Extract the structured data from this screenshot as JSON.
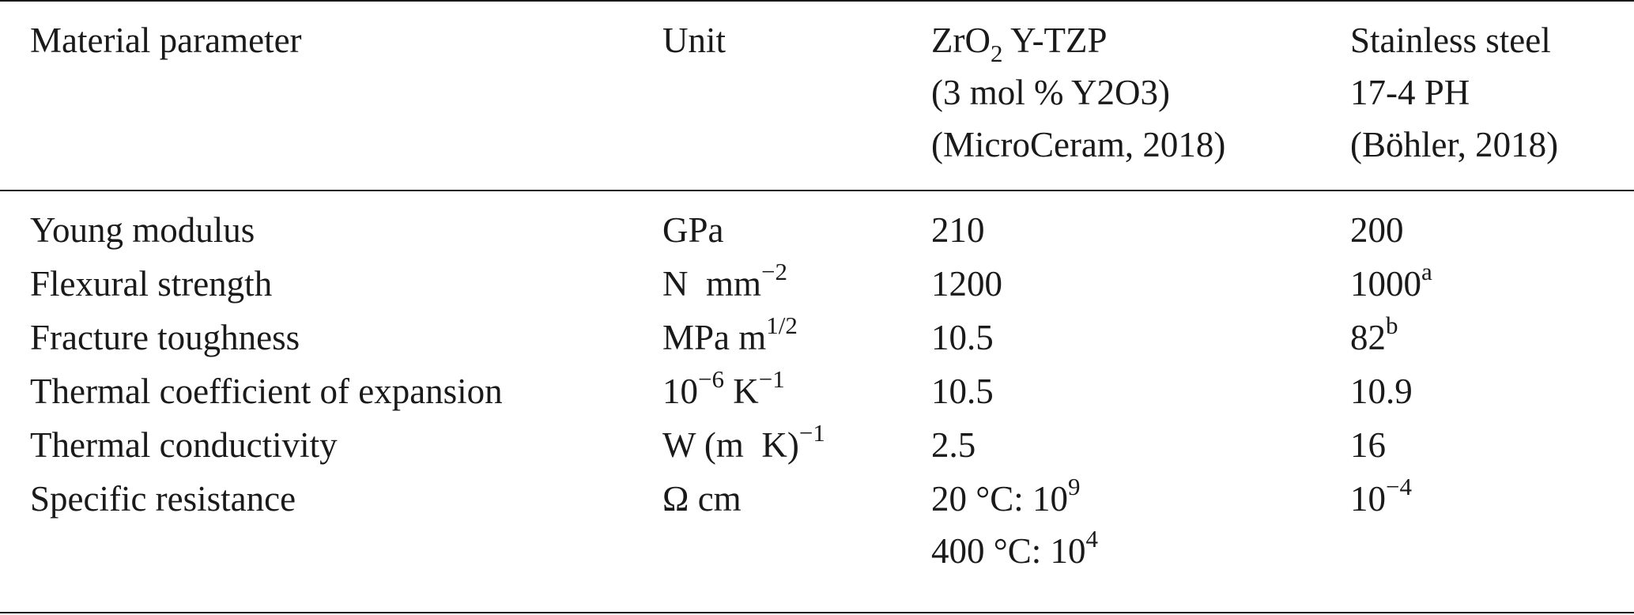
{
  "table": {
    "header": {
      "material_parameter": "Material parameter",
      "unit": "Unit",
      "zro2": {
        "line1_pre": "ZrO",
        "line1_sub": "2",
        "line1_post": " Y-TZP",
        "line2": "(3 mol % Y2O3)",
        "line3": "(MicroCeram, 2018)"
      },
      "steel": {
        "line1": "Stainless steel",
        "line2": "17-4 PH",
        "line3": "(Böhler, 2018)"
      }
    },
    "rows": [
      {
        "param": "Young modulus",
        "unit_base": "GPa",
        "unit_sup": "",
        "unit_post": "",
        "zro2": "210",
        "zro2_sup": "",
        "steel": "200",
        "steel_sup": ""
      },
      {
        "param": "Flexural strength",
        "unit_base": "N  mm",
        "unit_sup": "−2",
        "unit_post": "",
        "zro2": "1200",
        "zro2_sup": "",
        "steel": "1000",
        "steel_sup": "a"
      },
      {
        "param": "Fracture toughness",
        "unit_base": "MPa m",
        "unit_sup": "1/2",
        "unit_post": "",
        "zro2": "10.5",
        "zro2_sup": "",
        "steel": "82",
        "steel_sup": "b"
      },
      {
        "param": "Thermal coefficient of expansion",
        "unit_base": "10",
        "unit_sup": "−6",
        "unit_post": " K",
        "unit_sup2": "−1",
        "zro2": "10.5",
        "zro2_sup": "",
        "steel": "10.9",
        "steel_sup": ""
      },
      {
        "param": "Thermal conductivity",
        "unit_base": "W (m  K)",
        "unit_sup": "−1",
        "unit_post": "",
        "zro2": "2.5",
        "zro2_sup": "",
        "steel": "16",
        "steel_sup": ""
      },
      {
        "param": "Specific resistance",
        "unit_base": "Ω cm",
        "unit_sup": "",
        "unit_post": "",
        "zro2_line1_base": "20 °C: 10",
        "zro2_line1_sup": "9",
        "zro2_line2_base": "400 °C: 10",
        "zro2_line2_sup": "4",
        "steel": "10",
        "steel_sup": "−4"
      }
    ]
  }
}
